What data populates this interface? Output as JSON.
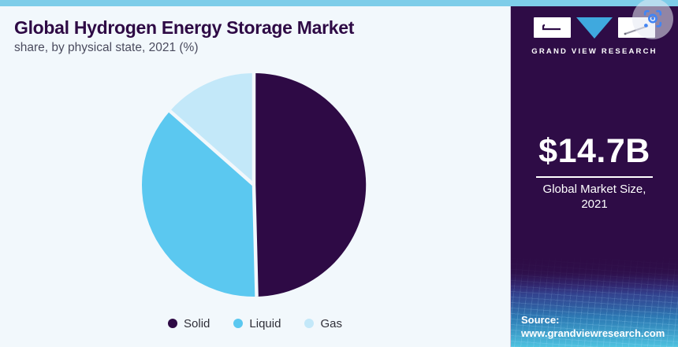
{
  "header": {
    "title": "Global Hydrogen Energy Storage Market",
    "subtitle": "share, by physical state, 2021 (%)"
  },
  "chart_data": {
    "type": "pie",
    "title": "Global Hydrogen Energy Storage Market share, by physical state, 2021 (%)",
    "labels": [
      "Solid",
      "Liquid",
      "Gas"
    ],
    "values": [
      49.6,
      36.9,
      13.5
    ],
    "unit": "%",
    "colors": [
      "#2E0A45",
      "#5BC8F0",
      "#C3E8F9"
    ],
    "start_angle_deg": 0,
    "direction": "clockwise",
    "legend_position": "bottom",
    "slice_gap_color": "#F2F8FC"
  },
  "side_panel": {
    "brand": "GRAND VIEW RESEARCH",
    "market_size_value": "$14.7B",
    "market_size_label_line1": "Global Market Size,",
    "market_size_label_line2": "2021",
    "source_label": "Source:",
    "source_url": "www.grandviewresearch.com"
  },
  "colors": {
    "top_bar": "#7ECDE9",
    "left_bg": "#F2F8FC",
    "panel_bg": "#2E0C46",
    "title_text": "#2E0A45",
    "subtitle_text": "#4A4B5E",
    "legend_text": "#2F2F38",
    "accent_blue": "#3FA9DE",
    "lens_blue": "#4285F4"
  }
}
